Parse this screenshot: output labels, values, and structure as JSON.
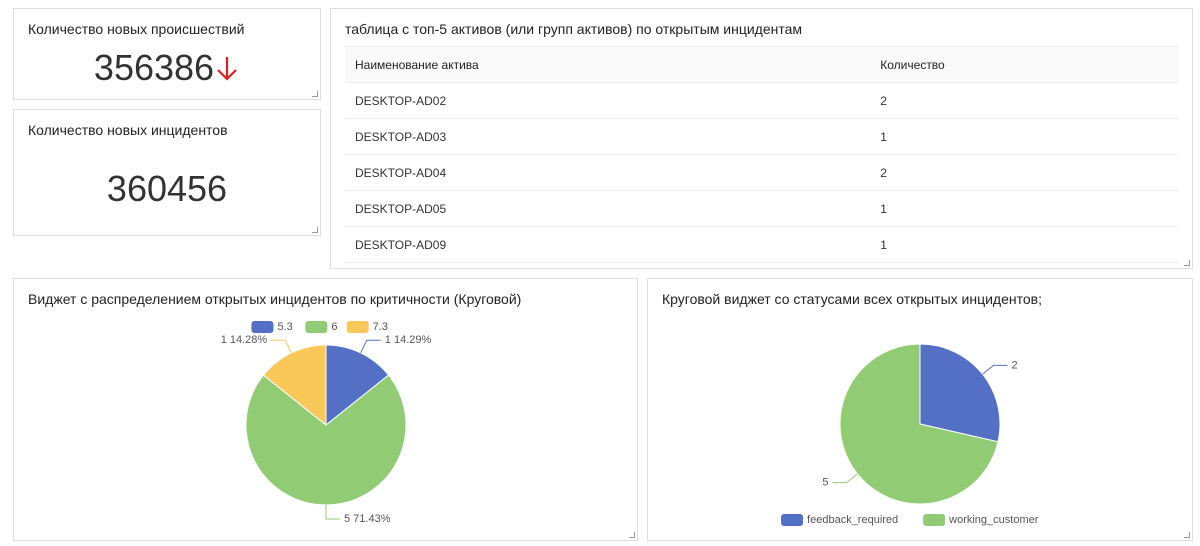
{
  "stats": [
    {
      "title": "Количество новых происшествий",
      "value": 356386
    },
    {
      "title": "Количество новых инцидентов",
      "value": 360456
    }
  ],
  "table": {
    "title": "таблица с топ-5 активов (или групп активов) по открытым инцидентам",
    "columns": [
      "Наименование актива",
      "Количество"
    ],
    "rows": [
      [
        "DESKTOP-AD02",
        2
      ],
      [
        "DESKTOP-AD03",
        1
      ],
      [
        "DESKTOP-AD04",
        2
      ],
      [
        "DESKTOP-AD05",
        1
      ],
      [
        "DESKTOP-AD09",
        1
      ]
    ]
  },
  "chart_data": [
    {
      "type": "pie",
      "title": "Виджет с распределением открытых инцидентов по критичности (Круговой)",
      "categories": [
        "5.3",
        "6",
        "7.3"
      ],
      "values": [
        1,
        5,
        1
      ],
      "value_labels": [
        "1 14.29%",
        "5 71.43%",
        "1 14.28%"
      ],
      "colors": [
        "#5470c6",
        "#91cc75",
        "#fac858"
      ],
      "legend": "top"
    },
    {
      "type": "pie",
      "title": "Круговой виджет со статусами всех открытых инцидентов;",
      "categories": [
        "feedback_required",
        "working_customer"
      ],
      "values": [
        2,
        5
      ],
      "colors": [
        "#5470c6",
        "#91cc75"
      ],
      "legend": "bottom"
    }
  ]
}
